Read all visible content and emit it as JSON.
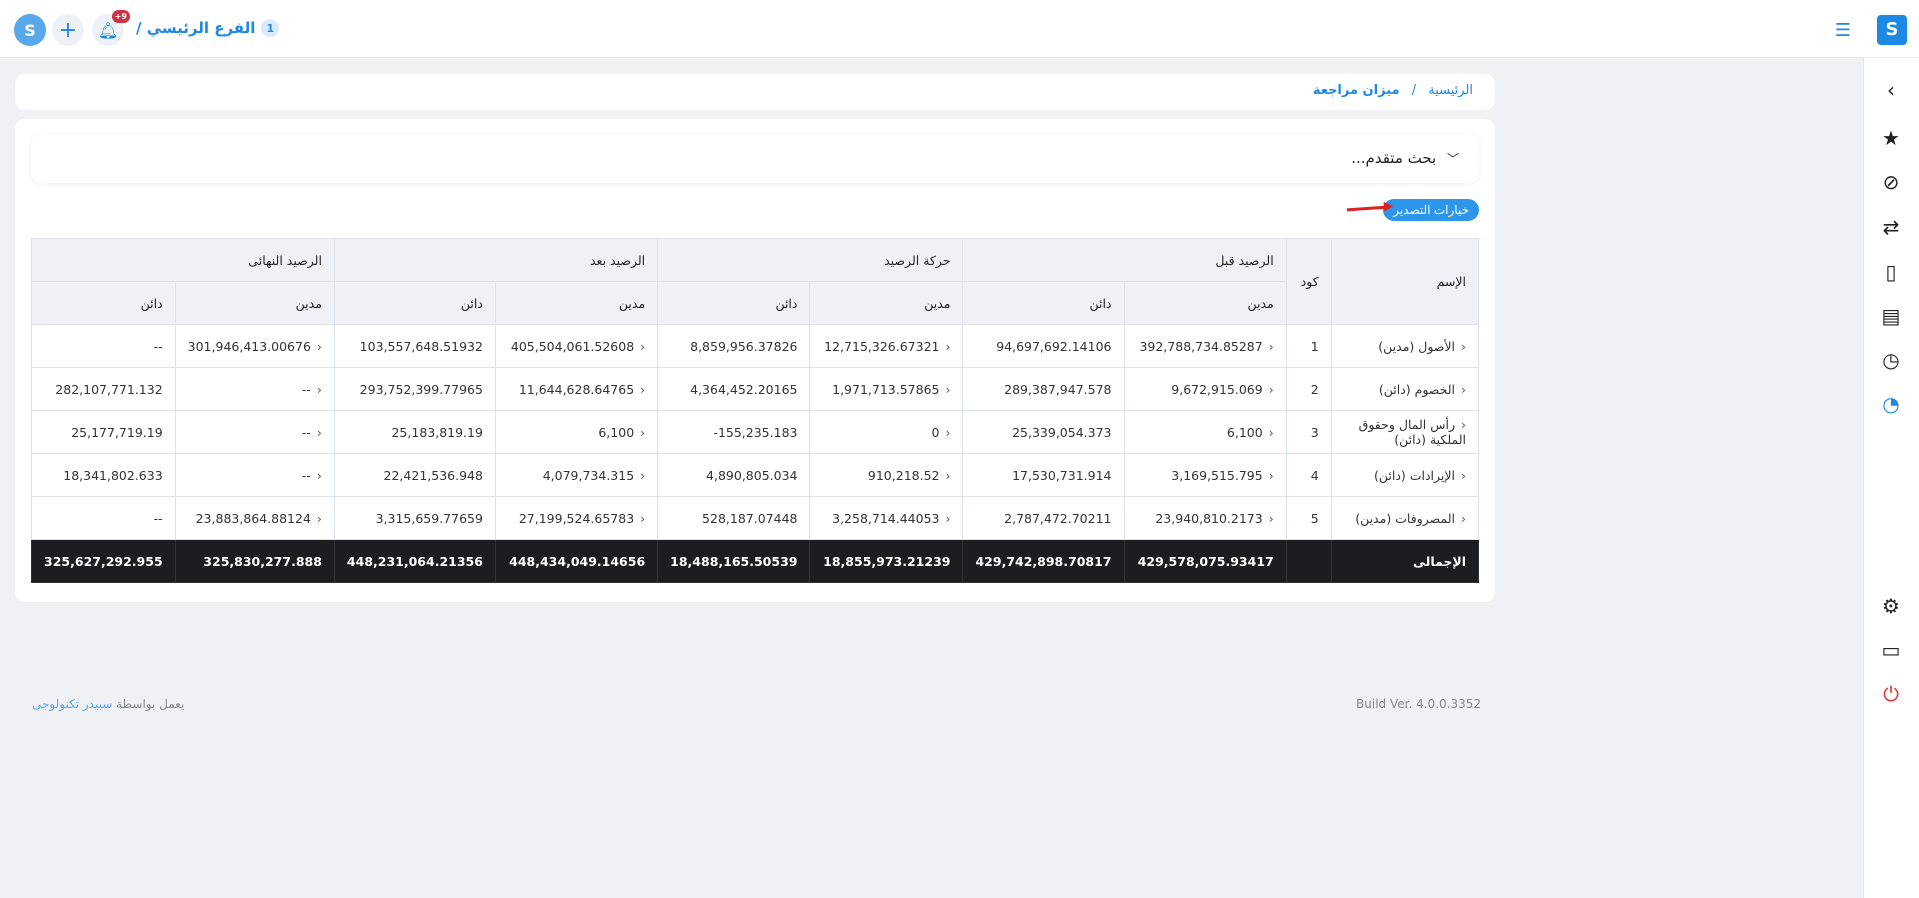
{
  "topbar": {
    "branch_number": "1",
    "branch_name": "الفرع الرئيسي /",
    "notification_count": "+9"
  },
  "breadcrumb": {
    "home": "الرئيسية",
    "separator": "/",
    "current": "ميزان مراجعة"
  },
  "search": {
    "label": "بحث متقدم..."
  },
  "export_button": "خيارات التصدير",
  "table": {
    "groups": [
      "الإسم",
      "كود",
      "الرصيد قبل",
      "حركة الرصيد",
      "الرصيد بعد",
      "الرصيد النهائى"
    ],
    "debit": "مدين",
    "credit": "دائن",
    "rows": [
      {
        "name": "الأصول (مدين)",
        "code": "1",
        "v": [
          "392,788,734.85287",
          "94,697,692.14106",
          "12,715,326.67321",
          "8,859,956.37826",
          "405,504,061.52608",
          "103,557,648.51932",
          "301,946,413.00676",
          "--"
        ]
      },
      {
        "name": "الخصوم (دائن)",
        "code": "2",
        "v": [
          "9,672,915.069",
          "289,387,947.578",
          "1,971,713.57865",
          "4,364,452.20165",
          "11,644,628.64765",
          "293,752,399.77965",
          "--",
          "282,107,771.132"
        ]
      },
      {
        "name": "رأس المال وحقوق الملكية (دائن)",
        "code": "3",
        "v": [
          "6,100",
          "25,339,054.373",
          "0",
          "-155,235.183",
          "6,100",
          "25,183,819.19",
          "--",
          "25,177,719.19"
        ]
      },
      {
        "name": "الإيرادات (دائن)",
        "code": "4",
        "v": [
          "3,169,515.795",
          "17,530,731.914",
          "910,218.52",
          "4,890,805.034",
          "4,079,734.315",
          "22,421,536.948",
          "--",
          "18,341,802.633"
        ]
      },
      {
        "name": "المصروفات (مدين)",
        "code": "5",
        "v": [
          "23,940,810.2173",
          "2,787,472.70211",
          "3,258,714.44053",
          "528,187.07448",
          "27,199,524.65783",
          "3,315,659.77659",
          "23,883,864.88124",
          "--"
        ]
      }
    ],
    "total": {
      "label": "الإجمالى",
      "v": [
        "429,578,075.93417",
        "429,742,898.70817",
        "18,855,973.21239",
        "18,488,165.50539",
        "448,434,049.14656",
        "448,231,064.21356",
        "325,830,277.888",
        "325,627,292.955"
      ]
    }
  },
  "footer": {
    "powered_prefix": "يعمل بواسطة",
    "powered_company": "سبيدر تكنولوجى",
    "build": "Build Ver. 4.0.0.3352"
  },
  "colors": {
    "accent": "#1e88e5",
    "total_row": "#1c1d21"
  }
}
